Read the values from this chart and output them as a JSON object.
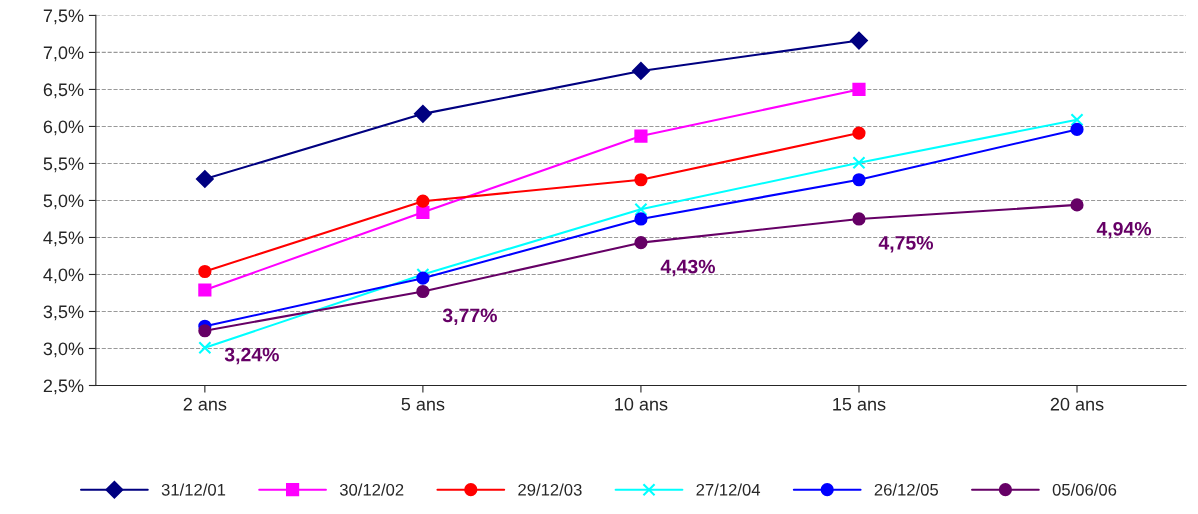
{
  "chart_data": {
    "type": "line",
    "categories": [
      "2 ans",
      "5 ans",
      "10 ans",
      "15 ans",
      "20 ans"
    ],
    "ylim": [
      2.5,
      7.5
    ],
    "yticks": [
      {
        "value": 2.5,
        "label": "2,5%"
      },
      {
        "value": 3.0,
        "label": "3,0%"
      },
      {
        "value": 3.5,
        "label": "3,5%"
      },
      {
        "value": 4.0,
        "label": "4,0%"
      },
      {
        "value": 4.5,
        "label": "4,5%"
      },
      {
        "value": 5.0,
        "label": "5,0%"
      },
      {
        "value": 5.5,
        "label": "5,5%"
      },
      {
        "value": 6.0,
        "label": "6,0%"
      },
      {
        "value": 6.5,
        "label": "6,5%"
      },
      {
        "value": 7.0,
        "label": "7,0%"
      },
      {
        "value": 7.5,
        "label": "7,5%"
      }
    ],
    "grid": "y",
    "legend": "bottom",
    "series": [
      {
        "name": "31/12/01",
        "color": "#000080",
        "marker": "diamond",
        "values": [
          5.29,
          6.17,
          6.75,
          7.16,
          null
        ]
      },
      {
        "name": "30/12/02",
        "color": "#ff00ff",
        "marker": "square",
        "values": [
          3.79,
          4.84,
          5.87,
          6.5,
          null
        ]
      },
      {
        "name": "29/12/03",
        "color": "#ff0000",
        "marker": "circle",
        "values": [
          4.04,
          4.99,
          5.28,
          5.91,
          null
        ]
      },
      {
        "name": "27/12/04",
        "color": "#00ffff",
        "marker": "cross",
        "values": [
          3.01,
          4.0,
          4.88,
          5.51,
          6.09
        ]
      },
      {
        "name": "26/12/05",
        "color": "#0000ff",
        "marker": "circle",
        "values": [
          3.3,
          3.95,
          4.75,
          5.28,
          5.96
        ]
      },
      {
        "name": "05/06/06",
        "color": "#660066",
        "marker": "circle",
        "values": [
          3.24,
          3.77,
          4.43,
          4.75,
          4.94
        ],
        "value_labels": [
          "3,24%",
          "3,77%",
          "4,43%",
          "4,75%",
          "4,94%"
        ]
      }
    ]
  }
}
